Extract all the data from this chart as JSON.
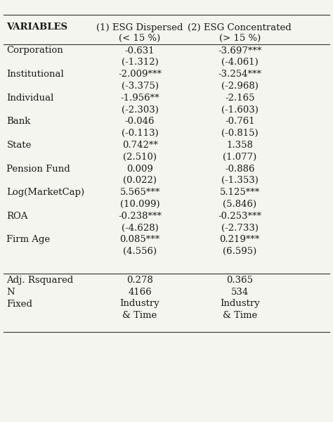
{
  "title": "",
  "col_headers": [
    "VARIABLES",
    "(1) ESG Dispersed\n(< 15 %)",
    "(2) ESG Concentrated\n(> 15 %)"
  ],
  "rows": [
    [
      "Corporation",
      "-0.631",
      "-3.697***"
    ],
    [
      "",
      "(-1.312)",
      "(-4.061)"
    ],
    [
      "Institutional",
      "-2.009***",
      "-3.254***"
    ],
    [
      "",
      "(-3.375)",
      "(-2.968)"
    ],
    [
      "Individual",
      "-1.956**",
      "-2.165"
    ],
    [
      "",
      "(-2.303)",
      "(-1.603)"
    ],
    [
      "Bank",
      "-0.046",
      "-0.761"
    ],
    [
      "",
      "(-0.113)",
      "(-0.815)"
    ],
    [
      "State",
      "0.742**",
      "1.358"
    ],
    [
      "",
      "(2.510)",
      "(1.077)"
    ],
    [
      "Pension Fund",
      "0.009",
      "-0.886"
    ],
    [
      "",
      "(0.022)",
      "(-1.353)"
    ],
    [
      "Log(MarketCap)",
      "5.565***",
      "5.125***"
    ],
    [
      "",
      "(10.099)",
      "(5.846)"
    ],
    [
      "ROA",
      "-0.238***",
      "-0.253***"
    ],
    [
      "",
      "(-4.628)",
      "(-2.733)"
    ],
    [
      "Firm Age",
      "0.085***",
      "0.219***"
    ],
    [
      "",
      "(4.556)",
      "(6.595)"
    ]
  ],
  "footer_rows": [
    [
      "Adj. Rsquared",
      "0.278",
      "0.365"
    ],
    [
      "N",
      "4166",
      "534"
    ],
    [
      "Fixed",
      "Industry",
      "Industry"
    ],
    [
      "",
      "& Time",
      "& Time"
    ]
  ],
  "bg_color": "#f5f5f0",
  "text_color": "#1a1a1a",
  "line_color": "#333333",
  "font_size": 9.5,
  "header_font_size": 9.5
}
